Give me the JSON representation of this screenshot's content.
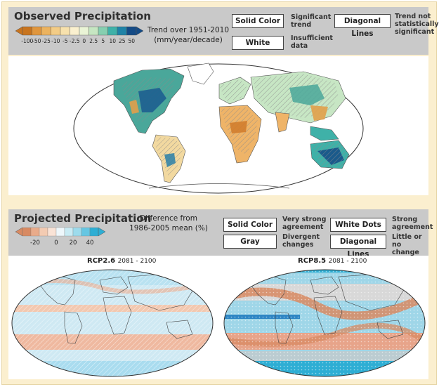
{
  "observed": {
    "title": "Observed Precipitation",
    "scale_labels": [
      "-100",
      "-50",
      "-25",
      "-10",
      "-5",
      "-2.5",
      "0",
      "2.5",
      "5",
      "10",
      "25",
      "50"
    ],
    "scale_colors": [
      "#c8741e",
      "#e0963d",
      "#ecb35f",
      "#f3cc86",
      "#f7e1ad",
      "#faf0cf",
      "#eaf4d6",
      "#c6e6c2",
      "#86cfb0",
      "#3fb1a8",
      "#1f83a7",
      "#144b86"
    ],
    "trend_line1": "Trend over 1951-2010",
    "trend_line2": "(mm/year/decade)",
    "legend": {
      "solid_color": "Solid Color",
      "solid_color_desc": [
        "Significant",
        "trend"
      ],
      "white": "White",
      "white_desc": [
        "Insufficient",
        "data"
      ],
      "diagonal_lines": "Diagonal Lines",
      "diagonal_desc": [
        "Trend not",
        "statistically",
        "significant"
      ]
    }
  },
  "projected": {
    "title": "Projected Precipitation",
    "scale_labels": [
      "-20",
      "0",
      "20",
      "40"
    ],
    "scale_colors": [
      "#d88a62",
      "#e9ab8a",
      "#f3cbb2",
      "#f9e3d6",
      "#eef7fb",
      "#c9ebf4",
      "#9ddbec",
      "#66c6e2",
      "#2eaed4"
    ],
    "diff_line1": "Difference from",
    "diff_line2": "1986-2005 mean (%)",
    "legend": {
      "solid_color": "Solid Color",
      "solid_color_desc": [
        "Very strong",
        "agreement"
      ],
      "gray": "Gray",
      "gray_desc": [
        "Divergent",
        "changes"
      ],
      "white_dots": "White Dots",
      "white_dots_desc": [
        "Strong",
        "agreement"
      ],
      "diagonal_lines": "Diagonal Lines",
      "diagonal_desc": [
        "Little or",
        "no change"
      ]
    },
    "maps": [
      {
        "scenario": "RCP2.6",
        "period": "2081 - 2100"
      },
      {
        "scenario": "RCP8.5",
        "period": "2081 - 2100"
      }
    ]
  }
}
